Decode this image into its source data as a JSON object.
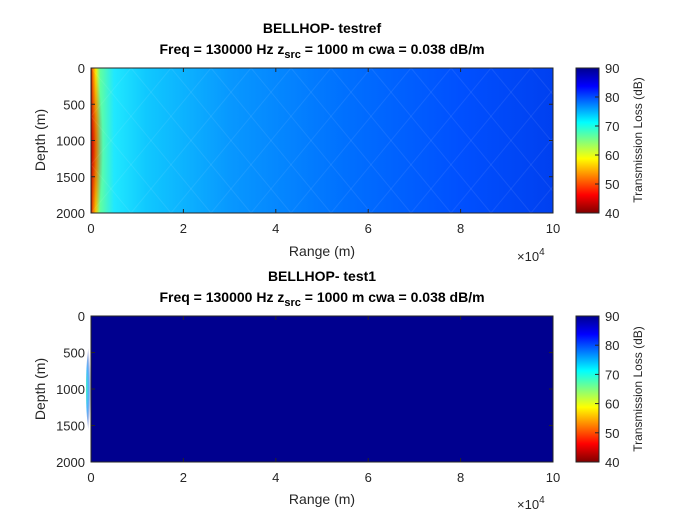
{
  "chart_data": [
    {
      "type": "heatmap",
      "title": "BELLHOP- testref",
      "subtitle": {
        "part1": "Freq = 130000 Hz    z",
        "sub": "src",
        "part2": " = 1000 m cwa = 0.038 dB/m"
      },
      "xlabel": "Range (m)",
      "ylabel": "Depth (m)",
      "x_exponent": "×10",
      "x_exponent_power": "4",
      "xlim": [
        0,
        100000
      ],
      "ylim": [
        0,
        2000
      ],
      "y_reversed": true,
      "xticks": [
        0,
        20000,
        40000,
        60000,
        80000,
        100000
      ],
      "xtick_labels": [
        "0",
        "2",
        "4",
        "6",
        "8",
        "10"
      ],
      "yticks": [
        0,
        500,
        1000,
        1500,
        2000
      ],
      "ytick_labels": [
        "0",
        "500",
        "1000",
        "1500",
        "2000"
      ],
      "colorbar": {
        "label": "Transmission Loss (dB)",
        "limits": [
          40,
          90
        ],
        "ticks": [
          40,
          50,
          60,
          70,
          80,
          90
        ],
        "tick_labels": [
          "40",
          "50",
          "60",
          "70",
          "80",
          "90"
        ],
        "colormap": "jet-reversed"
      },
      "field": {
        "background_tl": 82,
        "near_source_tl": 45,
        "near_range_extent": 5000,
        "description_values": "Transmission loss increases with range from ~45 dB near the source to ~85 dB at 100 km"
      },
      "grid": false,
      "legend": "none"
    },
    {
      "type": "heatmap",
      "title": "BELLHOP- test1",
      "subtitle": {
        "part1": "Freq = 130000 Hz    z",
        "sub": "src",
        "part2": " = 1000 m cwa = 0.038 dB/m"
      },
      "xlabel": "Range (m)",
      "ylabel": "Depth (m)",
      "x_exponent": "×10",
      "x_exponent_power": "4",
      "xlim": [
        0,
        100000
      ],
      "ylim": [
        0,
        2000
      ],
      "y_reversed": true,
      "xticks": [
        0,
        20000,
        40000,
        60000,
        80000,
        100000
      ],
      "xtick_labels": [
        "0",
        "2",
        "4",
        "6",
        "8",
        "10"
      ],
      "yticks": [
        0,
        500,
        1000,
        1500,
        2000
      ],
      "ytick_labels": [
        "0",
        "500",
        "1000",
        "1500",
        "2000"
      ],
      "colorbar": {
        "label": "Transmission Loss (dB)",
        "limits": [
          40,
          90
        ],
        "ticks": [
          40,
          50,
          60,
          70,
          80,
          90
        ],
        "tick_labels": [
          "40",
          "50",
          "60",
          "70",
          "80",
          "90"
        ],
        "colormap": "jet-reversed"
      },
      "field": {
        "background_tl": 90,
        "near_source_tl": 72,
        "near_range_extent": 800,
        "near_depth_range": [
          350,
          1650
        ]
      },
      "grid": false,
      "legend": "none"
    }
  ]
}
